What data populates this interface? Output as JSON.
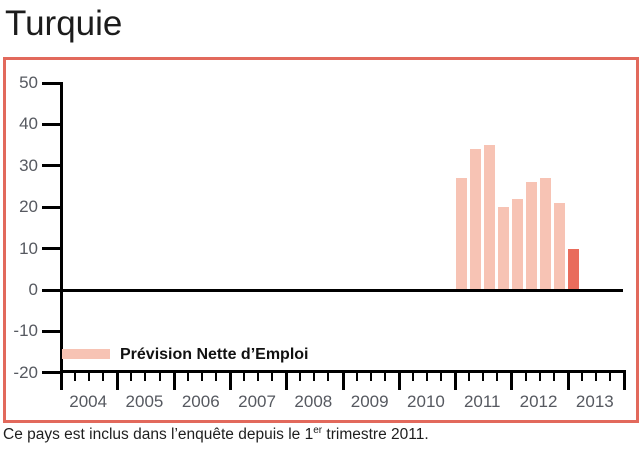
{
  "page": {
    "title": "Turquie",
    "caption": {
      "prefix": "Ce pays est inclus dans l’enquête depuis le 1",
      "superscript": "er",
      "suffix": " trimestre 2011."
    }
  },
  "chart_data": {
    "type": "bar",
    "title": "Turquie",
    "legend": [
      {
        "label": "Prévision Nette d’Emploi",
        "color": "#f7c3b4"
      }
    ],
    "legend_position": "inside bottom-left",
    "x": [
      "2011 T1",
      "2011 T2",
      "2011 T3",
      "2011 T4",
      "2012 T1",
      "2012 T2",
      "2012 T3",
      "2012 T4",
      "2013 T1"
    ],
    "values": [
      27,
      34,
      35,
      20,
      22,
      26,
      27,
      21,
      10
    ],
    "highlight_index": 8,
    "x_axis": {
      "years": [
        "2004",
        "2005",
        "2006",
        "2007",
        "2008",
        "2009",
        "2010",
        "2011",
        "2012",
        "2013"
      ],
      "first_year": 2004,
      "quarters_per_year": 4
    },
    "y_axis": {
      "min": -20,
      "max": 50,
      "ticks": [
        50,
        40,
        30,
        20,
        10,
        0,
        -10,
        -20
      ]
    },
    "zero_line": true,
    "grid": false
  },
  "colors": {
    "panel_border": "#e2695c",
    "bar_light": "#f7c3b4",
    "bar_dark": "#e96c5c",
    "axis": "#000000",
    "axis_label": "#565960",
    "title_text": "#1c1c1c",
    "caption_text": "#1e1e1e"
  }
}
